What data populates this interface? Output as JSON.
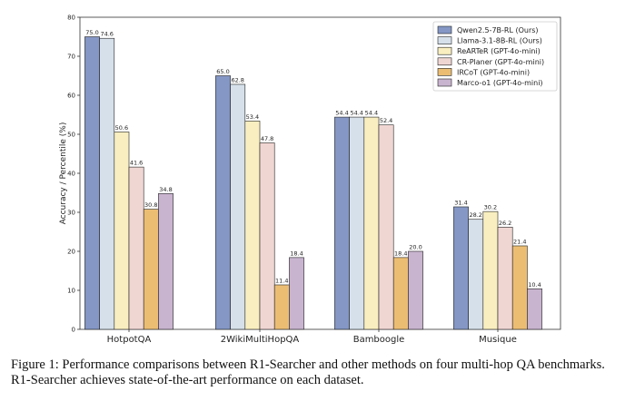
{
  "chart_data": {
    "type": "bar",
    "categories": [
      "HotpotQA",
      "2WikiMultiHopQA",
      "Bamboogle",
      "Musique"
    ],
    "series": [
      {
        "name": "Qwen2.5-7B-RL (Ours)",
        "color": "#8497c5",
        "values": [
          75.0,
          65.0,
          54.4,
          31.4
        ]
      },
      {
        "name": "Llama-3.1-8B-RL (Ours)",
        "color": "#d5e0ea",
        "values": [
          74.6,
          62.8,
          54.4,
          28.2
        ]
      },
      {
        "name": "ReARTeR (GPT-4o-mini)",
        "color": "#f8eebf",
        "values": [
          50.6,
          53.4,
          54.4,
          30.2
        ]
      },
      {
        "name": "CR-Planer (GPT-4o-mini)",
        "color": "#f0d6d3",
        "values": [
          41.6,
          47.8,
          52.4,
          26.2
        ]
      },
      {
        "name": "IRCoT (GPT-4o-mini)",
        "color": "#ebbd73",
        "values": [
          30.8,
          11.4,
          18.4,
          21.4
        ]
      },
      {
        "name": "Marco-o1 (GPT-4o-mini)",
        "color": "#c9b4cf",
        "values": [
          34.8,
          18.4,
          20.0,
          10.4
        ]
      }
    ],
    "value_labels": [
      [
        "75.0",
        "65.0",
        "54.4",
        "31.4"
      ],
      [
        "74.6",
        "62.8",
        "54.4",
        "28.2"
      ],
      [
        "50.6",
        "53.4",
        "54.4",
        "30.2"
      ],
      [
        "41.6",
        "47.8",
        "52.4",
        "26.2"
      ],
      [
        "30.8",
        "11.4",
        "18.4",
        "21.4"
      ],
      [
        "34.8",
        "18.4",
        "20.0",
        "10.4"
      ]
    ],
    "ylabel": "Accuracy / Percentile (%)",
    "xlabel": "",
    "ylim": [
      0,
      80
    ],
    "yticks": [
      "0",
      "10",
      "20",
      "30",
      "40",
      "50",
      "60",
      "70",
      "80"
    ],
    "legend_position": "top-right",
    "grid": false
  },
  "caption": "Figure 1: Performance comparisons between R1-Searcher and other methods on four multi-hop QA benchmarks. R1-Searcher achieves state-of-the-art performance on each dataset."
}
